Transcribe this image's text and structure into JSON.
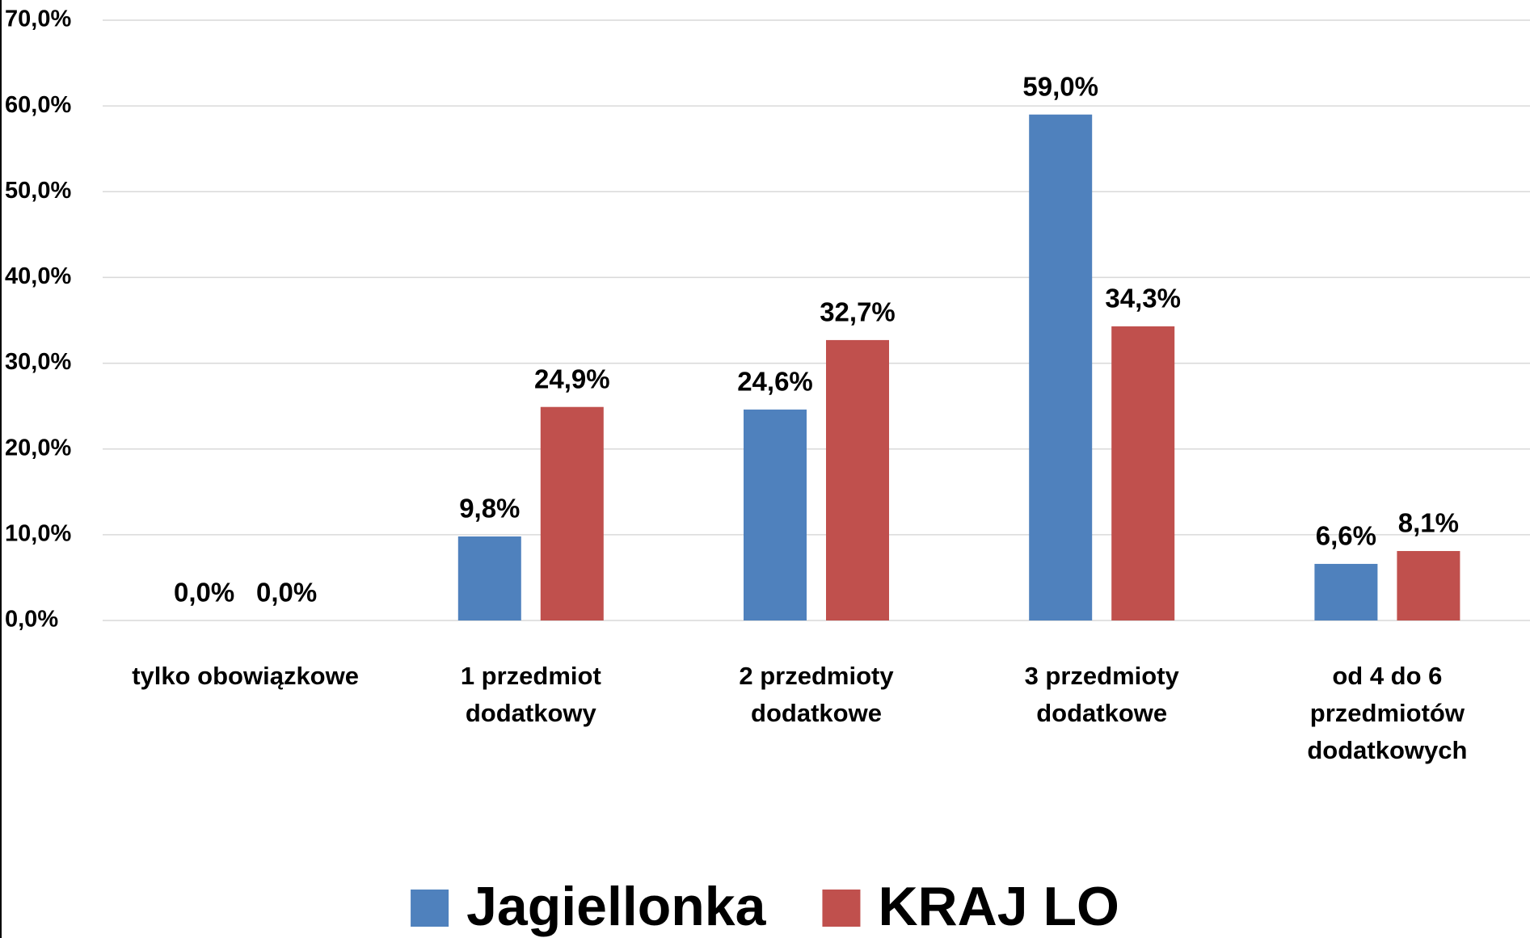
{
  "chart_data": {
    "type": "bar",
    "categories": [
      "tylko obowiązkowe",
      "1 przedmiot dodatkowy",
      "2 przedmioty dodatkowe",
      "3 przedmioty dodatkowe",
      "od 4 do 6 przedmiotów dodatkowych"
    ],
    "series": [
      {
        "name": "Jagiellonka",
        "color": "#4f81bd",
        "values": [
          0,
          9.8,
          24.6,
          59,
          6.6
        ],
        "value_labels": [
          "0,0%",
          "9,8%",
          "24,6%",
          "59,0%",
          "6,6%"
        ]
      },
      {
        "name": "KRAJ LO",
        "color": "#c0504d",
        "values": [
          0,
          24.9,
          32.7,
          34.3,
          8.1
        ],
        "value_labels": [
          "0,0%",
          "24,9%",
          "32,7%",
          "34,3%",
          "8,1%"
        ]
      }
    ],
    "ylim": [
      0,
      70
    ],
    "yticks": [
      {
        "value": 0,
        "label": "0,0%"
      },
      {
        "value": 10,
        "label": "10,0%"
      },
      {
        "value": 20,
        "label": "20,0%"
      },
      {
        "value": 30,
        "label": "30,0%"
      },
      {
        "value": 40,
        "label": "40,0%"
      },
      {
        "value": 50,
        "label": "50,0%"
      },
      {
        "value": 60,
        "label": "60,0%"
      },
      {
        "value": 70,
        "label": "70,0%"
      }
    ],
    "grid": true,
    "legend": "bottom"
  }
}
